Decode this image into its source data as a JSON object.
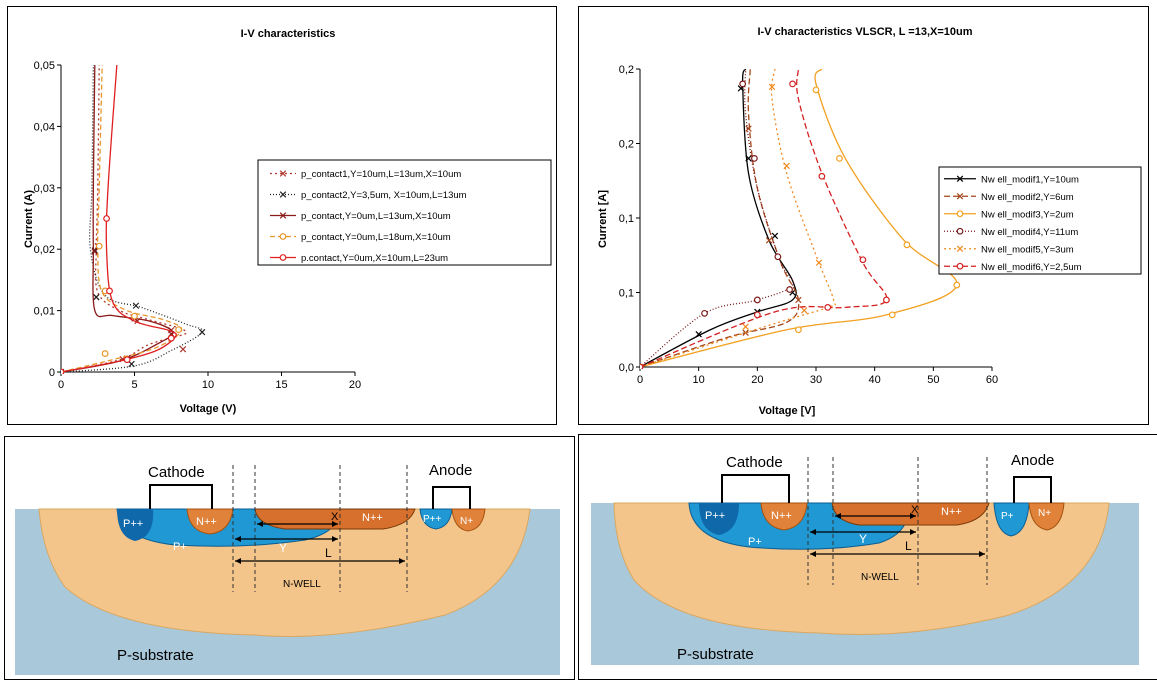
{
  "chart_data": [
    {
      "type": "line",
      "title": "I-V characteristics",
      "xlabel": "Voltage (V)",
      "ylabel": "Current (A)",
      "xlim": [
        0,
        20
      ],
      "ylim": [
        0,
        0.05
      ],
      "xticks": [
        "0",
        "5",
        "10",
        "15",
        "20"
      ],
      "yticks": [
        "0",
        "0,01",
        "0,02",
        "0,03",
        "0,04",
        "0,05"
      ],
      "legend_position": "right",
      "series": [
        {
          "name": "p_contact1,Y=10um,L=13um,X=10um",
          "color": "#b0372e",
          "dash": "2,3",
          "marker": "x",
          "points": [
            [
              0,
              0
            ],
            [
              4,
              0.002
            ],
            [
              6,
              0.0045
            ],
            [
              8.2,
              0.006
            ],
            [
              8.5,
              0.0065
            ],
            [
              8,
              0.0072
            ],
            [
              6,
              0.0085
            ],
            [
              4,
              0.01
            ],
            [
              2.5,
              0.013
            ],
            [
              2.4,
              0.02
            ],
            [
              2.5,
              0.03
            ],
            [
              2.6,
              0.05
            ]
          ],
          "markers": [
            [
              0,
              0
            ],
            [
              4.2,
              0.0021
            ],
            [
              8.3,
              0.0037
            ],
            [
              7.5,
              0.0068
            ],
            [
              5.2,
              0.0083
            ],
            [
              2.4,
              0.0122
            ],
            [
              2.5,
              0.0205
            ]
          ]
        },
        {
          "name": "p_contact2,Y=3,5um, X=10um,L=13um",
          "color": "#222222",
          "dash": "1,2",
          "marker": "x",
          "points": [
            [
              0,
              0
            ],
            [
              5,
              0.001
            ],
            [
              7.5,
              0.0035
            ],
            [
              9.6,
              0.0065
            ],
            [
              8.5,
              0.0078
            ],
            [
              5.5,
              0.0105
            ],
            [
              3,
              0.0125
            ],
            [
              2,
              0.02
            ],
            [
              2.1,
              0.03
            ],
            [
              2.2,
              0.05
            ]
          ],
          "markers": [
            [
              0,
              0
            ],
            [
              4.8,
              0.0013
            ],
            [
              9.6,
              0.0065
            ],
            [
              5.1,
              0.0108
            ],
            [
              2.4,
              0.0122
            ],
            [
              2.3,
              0.0198
            ]
          ]
        },
        {
          "name": "p_contact,Y=0um,L=13um,X=10um",
          "color": "#8b1a1a",
          "dash": "",
          "marker": "x",
          "points": [
            [
              0,
              0
            ],
            [
              4,
              0.0018
            ],
            [
              6.5,
              0.0045
            ],
            [
              7.6,
              0.0065
            ],
            [
              6,
              0.0083
            ],
            [
              3.5,
              0.0092
            ],
            [
              2.3,
              0.01
            ],
            [
              2.2,
              0.02
            ],
            [
              2.2,
              0.03
            ],
            [
              2.3,
              0.05
            ]
          ],
          "markers": [
            [
              0,
              0
            ],
            [
              4.5,
              0.0022
            ],
            [
              7.5,
              0.0062
            ],
            [
              5,
              0.0087
            ],
            [
              2.3,
              0.0196
            ]
          ]
        },
        {
          "name": "p_contact,Y=0um,L=18um,X=10um",
          "color": "#e8962c",
          "dash": "5,3",
          "marker": "o",
          "points": [
            [
              0,
              0
            ],
            [
              3.5,
              0.002
            ],
            [
              6.5,
              0.004
            ],
            [
              8.2,
              0.0068
            ],
            [
              7,
              0.0085
            ],
            [
              4.5,
              0.01
            ],
            [
              2.8,
              0.013
            ],
            [
              2.5,
              0.02
            ],
            [
              2.6,
              0.03
            ],
            [
              2.8,
              0.05
            ]
          ],
          "markers": [
            [
              0,
              0
            ],
            [
              3,
              0.003
            ],
            [
              8,
              0.0069
            ],
            [
              5,
              0.0091
            ],
            [
              3,
              0.0132
            ],
            [
              2.6,
              0.0205
            ]
          ]
        },
        {
          "name": "p.contact,Y=0um,X=10um,L=23um",
          "color": "#e02020",
          "dash": "",
          "marker": "o",
          "points": [
            [
              0,
              0
            ],
            [
              4,
              0.0018
            ],
            [
              6.5,
              0.0035
            ],
            [
              7.8,
              0.0058
            ],
            [
              7.3,
              0.0068
            ],
            [
              5,
              0.0083
            ],
            [
              3.5,
              0.0115
            ],
            [
              3.1,
              0.02
            ],
            [
              3.2,
              0.03
            ],
            [
              3.8,
              0.05
            ]
          ],
          "markers": [
            [
              0,
              0
            ],
            [
              4.5,
              0.002
            ],
            [
              7.5,
              0.0055
            ],
            [
              3.3,
              0.0132
            ],
            [
              3.1,
              0.025
            ]
          ]
        }
      ]
    },
    {
      "type": "line",
      "title": "I-V characteristics VLSCR, L =13,X=10um",
      "xlabel": "Voltage  [V]",
      "ylabel": "Current [A]",
      "xlim": [
        0,
        60
      ],
      "ylim": [
        0,
        0.2
      ],
      "xticks": [
        "0",
        "10",
        "20",
        "30",
        "40",
        "50",
        "60"
      ],
      "yticks": [
        "0,0",
        "0,1",
        "0,1",
        "0,2",
        "0,2"
      ],
      "legend_position": "right",
      "series": [
        {
          "name": "Nw ell_modif1,Y=10um",
          "color": "#000000",
          "dash": "",
          "marker": "x",
          "points": [
            [
              0,
              0
            ],
            [
              12,
              0.025
            ],
            [
              20,
              0.037
            ],
            [
              26,
              0.045
            ],
            [
              26,
              0.058
            ],
            [
              22,
              0.085
            ],
            [
              18.5,
              0.13
            ],
            [
              17.5,
              0.19
            ],
            [
              18,
              0.2
            ]
          ],
          "markers": [
            [
              0,
              0
            ],
            [
              10,
              0.022
            ],
            [
              20,
              0.037
            ],
            [
              26,
              0.05
            ],
            [
              23,
              0.088
            ],
            [
              18.5,
              0.14
            ],
            [
              17.2,
              0.187
            ]
          ]
        },
        {
          "name": "Nw ell_modif2,Y=6um",
          "color": "#a4461a",
          "dash": "6,3",
          "marker": "x",
          "points": [
            [
              0,
              0
            ],
            [
              15,
              0.02
            ],
            [
              25,
              0.03
            ],
            [
              27,
              0.045
            ],
            [
              24,
              0.07
            ],
            [
              20,
              0.12
            ],
            [
              18.5,
              0.17
            ],
            [
              18.8,
              0.2
            ]
          ],
          "markers": [
            [
              0,
              0
            ],
            [
              18,
              0.023
            ],
            [
              27,
              0.045
            ],
            [
              22,
              0.085
            ],
            [
              18.5,
              0.16
            ]
          ]
        },
        {
          "name": "Nw ell_modif3,Y=2um",
          "color": "#f2a020",
          "dash": "",
          "marker": "o",
          "points": [
            [
              0,
              0
            ],
            [
              25,
              0.025
            ],
            [
              42,
              0.035
            ],
            [
              54,
              0.055
            ],
            [
              45,
              0.085
            ],
            [
              35,
              0.14
            ],
            [
              30,
              0.19
            ],
            [
              31,
              0.2
            ]
          ],
          "markers": [
            [
              0,
              0
            ],
            [
              27,
              0.025
            ],
            [
              43,
              0.035
            ],
            [
              54,
              0.055
            ],
            [
              45.5,
              0.082
            ],
            [
              34,
              0.14
            ],
            [
              30,
              0.186
            ]
          ]
        },
        {
          "name": "Nw ell_modif4,Y=11um",
          "color": "#7a1a1a",
          "dash": "1,2",
          "marker": "o",
          "points": [
            [
              0,
              0
            ],
            [
              11,
              0.036
            ],
            [
              20,
              0.045
            ],
            [
              26,
              0.055
            ],
            [
              24,
              0.07
            ],
            [
              20,
              0.12
            ],
            [
              18,
              0.17
            ],
            [
              18,
              0.2
            ]
          ],
          "markers": [
            [
              0,
              0
            ],
            [
              11,
              0.036
            ],
            [
              20,
              0.045
            ],
            [
              25.5,
              0.052
            ],
            [
              23.5,
              0.074
            ],
            [
              19.5,
              0.14
            ],
            [
              17.5,
              0.19
            ]
          ]
        },
        {
          "name": "Nw ell_modif5,Y=3um",
          "color": "#f08a20",
          "dash": "2,3",
          "marker": "x",
          "points": [
            [
              0,
              0
            ],
            [
              22,
              0.028
            ],
            [
              32,
              0.04
            ],
            [
              33,
              0.045
            ],
            [
              30,
              0.075
            ],
            [
              25,
              0.13
            ],
            [
              22.5,
              0.18
            ],
            [
              23,
              0.2
            ]
          ],
          "markers": [
            [
              0,
              0
            ],
            [
              18,
              0.027
            ],
            [
              28,
              0.038
            ],
            [
              30.5,
              0.07
            ],
            [
              25,
              0.135
            ],
            [
              22.5,
              0.188
            ]
          ]
        },
        {
          "name": "Nw ell_modif6,Y=2,5um",
          "color": "#d42020",
          "dash": "6,3",
          "marker": "o",
          "points": [
            [
              0,
              0
            ],
            [
              23,
              0.037
            ],
            [
              35,
              0.04
            ],
            [
              42,
              0.045
            ],
            [
              38,
              0.07
            ],
            [
              31,
              0.13
            ],
            [
              27,
              0.18
            ],
            [
              27,
              0.2
            ]
          ],
          "markers": [
            [
              0,
              0
            ],
            [
              20,
              0.035
            ],
            [
              32,
              0.04
            ],
            [
              42,
              0.045
            ],
            [
              38,
              0.072
            ],
            [
              31,
              0.128
            ],
            [
              26,
              0.19
            ]
          ]
        }
      ]
    }
  ],
  "diagrams": [
    {
      "cathode": "Cathode",
      "anode": "Anode",
      "p_pp": "P++",
      "n_pp_left": "N++",
      "p_plus": "P+",
      "n_pp_right": "N++",
      "p_plus_anode": "P++",
      "n_plus_anode": "N+",
      "x": "X",
      "y": "Y",
      "l": "L",
      "nwell": "N-WELL",
      "substrate": "P-substrate"
    },
    {
      "cathode": "Cathode",
      "anode": "Anode",
      "p_pp": "P++",
      "n_pp_left": "N++",
      "p_plus": "P+",
      "n_pp_right": "N++",
      "p_plus_anode": "P+",
      "n_plus_anode": "N+",
      "x": "X",
      "y": "Y",
      "l": "L",
      "nwell": "N-WELL",
      "substrate": "P-substrate"
    }
  ],
  "colors": {
    "substrate": "#a9c8da",
    "nwell": "#f3c58a",
    "p_region": "#1f98d4",
    "p_dark": "#0f68aa",
    "n_region": "#e0823a",
    "n_dark": "#c45f1c"
  }
}
